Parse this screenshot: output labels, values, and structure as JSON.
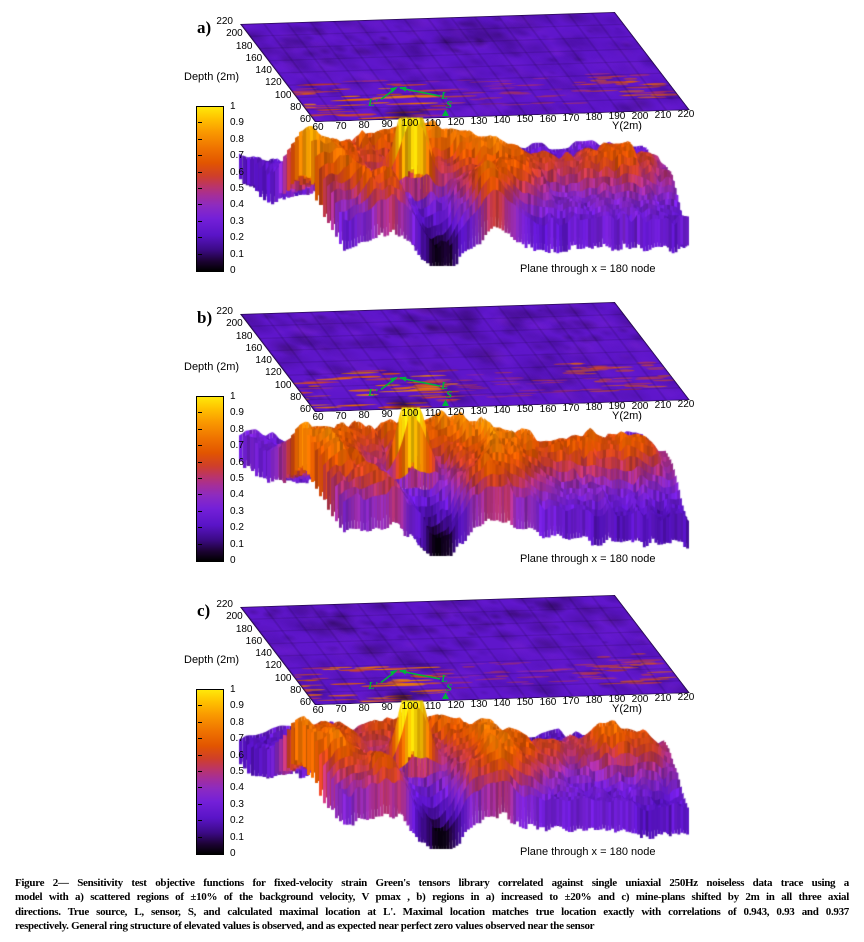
{
  "figure": {
    "panels": [
      {
        "id": "a",
        "label": "a)",
        "texture_seed": 3
      },
      {
        "id": "b",
        "label": "b)",
        "texture_seed": 8
      },
      {
        "id": "c",
        "label": "c)",
        "texture_seed": 14
      }
    ],
    "axes": {
      "depth_label": "Depth (2m)",
      "y_label": "Y(2m)",
      "depth_ticks": [
        "220",
        "200",
        "180",
        "160",
        "140",
        "120",
        "100",
        "80",
        "60"
      ],
      "y_ticks": [
        "60",
        "70",
        "80",
        "90",
        "100",
        "110",
        "120",
        "130",
        "140",
        "150",
        "160",
        "170",
        "180",
        "190",
        "200",
        "210",
        "220"
      ],
      "colorbar_ticks": [
        "1",
        "0.9",
        "0.8",
        "0.7",
        "0.6",
        "0.5",
        "0.4",
        "0.3",
        "0.2",
        "0.1",
        "0"
      ],
      "plane_note": "Plane through x = 180 node"
    },
    "annotations": {
      "max_label": "L'",
      "source_label": "L",
      "sensor_label": "S",
      "color": "#00b33c"
    },
    "colormap": [
      [
        0.0,
        "#000000"
      ],
      [
        0.06,
        "#1c0333"
      ],
      [
        0.13,
        "#3c0a86"
      ],
      [
        0.22,
        "#5a14c8"
      ],
      [
        0.32,
        "#7420d8"
      ],
      [
        0.4,
        "#8d2bc0"
      ],
      [
        0.46,
        "#a42e9a"
      ],
      [
        0.52,
        "#bc3566"
      ],
      [
        0.58,
        "#cf3f2a"
      ],
      [
        0.66,
        "#e25500"
      ],
      [
        0.75,
        "#ef7300"
      ],
      [
        0.85,
        "#fa9a00"
      ],
      [
        0.93,
        "#ffc200"
      ],
      [
        1.0,
        "#ffe80a"
      ]
    ]
  },
  "chart_data": [
    {
      "type": "heatmap",
      "panel": "a",
      "title": "Objective function, plane through x = 180 node",
      "x_label": "Y(2m)",
      "x_range": [
        60,
        220
      ],
      "depth_label": "Depth (2m)",
      "depth_range": [
        60,
        220
      ],
      "value_range": [
        0,
        1
      ],
      "correlation": 0.943,
      "markers": [
        {
          "label": "L",
          "meaning": "true source"
        },
        {
          "label": "S",
          "meaning": "sensor"
        },
        {
          "label": "L'",
          "meaning": "calculated maximal location"
        }
      ]
    },
    {
      "type": "heatmap",
      "panel": "b",
      "title": "Objective function, plane through x = 180 node",
      "x_label": "Y(2m)",
      "x_range": [
        60,
        220
      ],
      "depth_label": "Depth (2m)",
      "depth_range": [
        60,
        220
      ],
      "value_range": [
        0,
        1
      ],
      "correlation": 0.93,
      "markers": [
        {
          "label": "L",
          "meaning": "true source"
        },
        {
          "label": "S",
          "meaning": "sensor"
        },
        {
          "label": "L'",
          "meaning": "calculated maximal location"
        }
      ]
    },
    {
      "type": "heatmap",
      "panel": "c",
      "title": "Objective function, plane through x = 180 node",
      "x_label": "Y(2m)",
      "x_range": [
        60,
        220
      ],
      "depth_label": "Depth (2m)",
      "depth_range": [
        60,
        220
      ],
      "value_range": [
        0,
        1
      ],
      "correlation": 0.937,
      "markers": [
        {
          "label": "L",
          "meaning": "true source"
        },
        {
          "label": "S",
          "meaning": "sensor"
        },
        {
          "label": "L'",
          "meaning": "calculated maximal location"
        }
      ]
    }
  ],
  "caption": {
    "lines": [
      "Figure 2— Sensitivity test objective functions for fixed-velocity strain Green's tensors library correlated against single uniaxial 250Hz noiseless data trace using a",
      "model with a) scattered regions of ±10% of the background velocity, V pmax , b) regions in a) increased to ±20% and c) mine-plans shifted by 2m in all three axial",
      "directions. True source, L, sensor, S, and calculated maximal location at L'. Maximal location matches true location exactly with correlations of 0.943, 0.93 and 0.937",
      "respectively. General ring structure of elevated values is observed, and as expected near perfect zero values observed near the sensor"
    ]
  }
}
